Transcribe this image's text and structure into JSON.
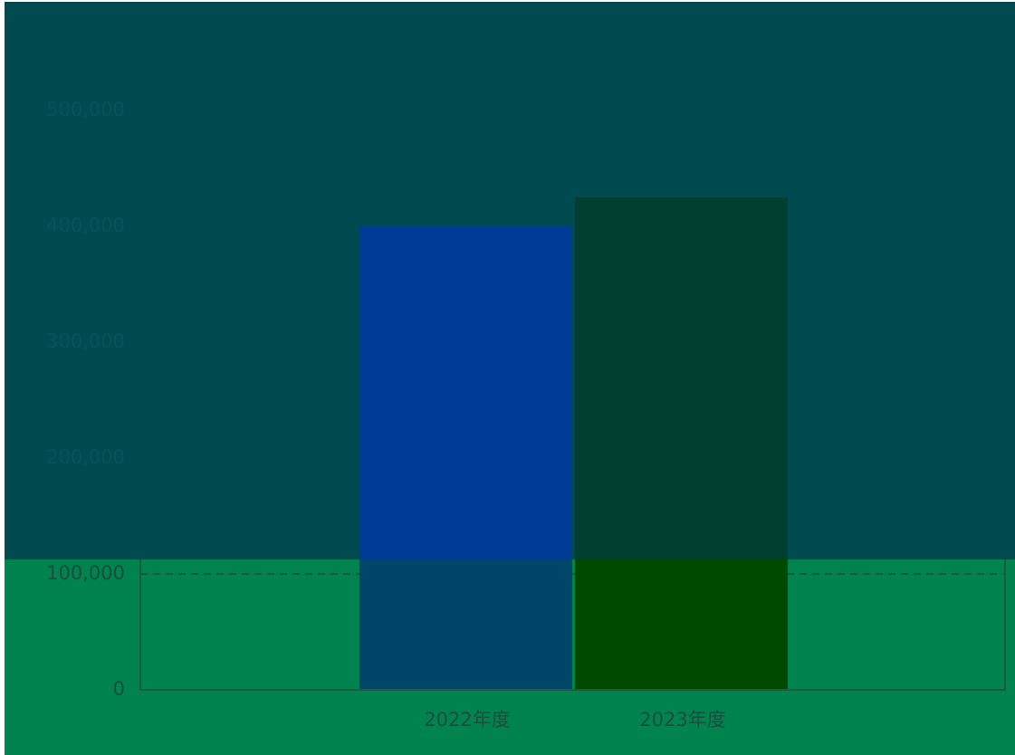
{
  "chart_data": {
    "type": "bar",
    "categories": [
      "2022年度",
      "2023年度"
    ],
    "values": [
      400000,
      425000
    ],
    "colors": [
      "#003c96",
      "#003f2f"
    ],
    "ylim": [
      0,
      500000
    ],
    "yticks": [
      0,
      {
        "value": 100000,
        "label": "100,000"
      },
      {
        "value": 200000,
        "label": "200,000"
      },
      {
        "value": 300000,
        "label": "300,000"
      },
      {
        "value": 400000,
        "label": "400,000"
      },
      {
        "value": 500000,
        "label": "500,000"
      }
    ],
    "grid": true
  }
}
